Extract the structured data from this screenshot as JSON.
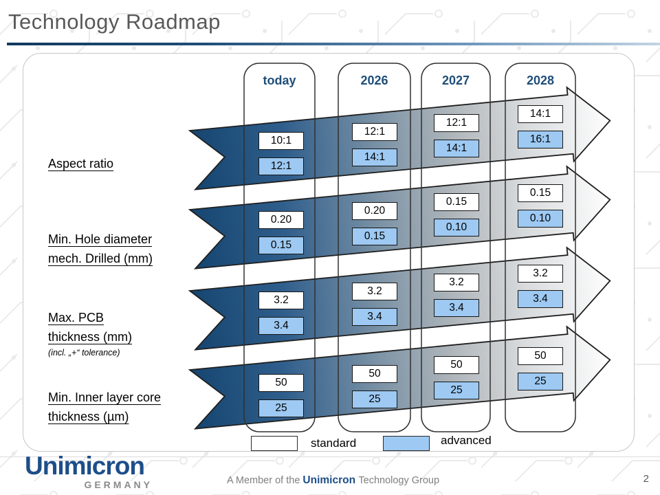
{
  "slide": {
    "title": "Technology Roadmap",
    "page_number": "2"
  },
  "columns": [
    "today",
    "2026",
    "2027",
    "2028"
  ],
  "rows": [
    {
      "label_lines": [
        "Aspect ratio"
      ],
      "note": "",
      "values": [
        {
          "standard": "10:1",
          "advanced": "12:1"
        },
        {
          "standard": "12:1",
          "advanced": "14:1"
        },
        {
          "standard": "12:1",
          "advanced": "14:1"
        },
        {
          "standard": "14:1",
          "advanced": "16:1"
        }
      ]
    },
    {
      "label_lines": [
        "Min. Hole diameter",
        "mech. Drilled (mm)"
      ],
      "note": "",
      "values": [
        {
          "standard": "0.20",
          "advanced": "0.15"
        },
        {
          "standard": "0.20",
          "advanced": "0.15"
        },
        {
          "standard": "0.15",
          "advanced": "0.10"
        },
        {
          "standard": "0.15",
          "advanced": "0.10"
        }
      ]
    },
    {
      "label_lines": [
        "Max. PCB",
        "thickness (mm)"
      ],
      "note": "(incl. „+“ tolerance)",
      "values": [
        {
          "standard": "3.2",
          "advanced": "3.4"
        },
        {
          "standard": "3.2",
          "advanced": "3.4"
        },
        {
          "standard": "3.2",
          "advanced": "3.4"
        },
        {
          "standard": "3.2",
          "advanced": "3.4"
        }
      ]
    },
    {
      "label_lines": [
        "Min. Inner layer core",
        "thickness (µm)"
      ],
      "note": "",
      "values": [
        {
          "standard": "50",
          "advanced": "25"
        },
        {
          "standard": "50",
          "advanced": "25"
        },
        {
          "standard": "50",
          "advanced": "25"
        },
        {
          "standard": "50",
          "advanced": "25"
        }
      ]
    }
  ],
  "legend": {
    "standard_label": "standard",
    "advanced_label": "advanced"
  },
  "footer": {
    "logo_name": "Unimicron",
    "logo_country": "GERMANY",
    "member_prefix": "A Member of the",
    "member_brand": "Unimicron",
    "member_suffix": "Technology Group"
  },
  "colors": {
    "accent_blue": "#1F4E79",
    "advanced_fill": "#9DC9F2",
    "arrow_dark": "#15456F"
  }
}
